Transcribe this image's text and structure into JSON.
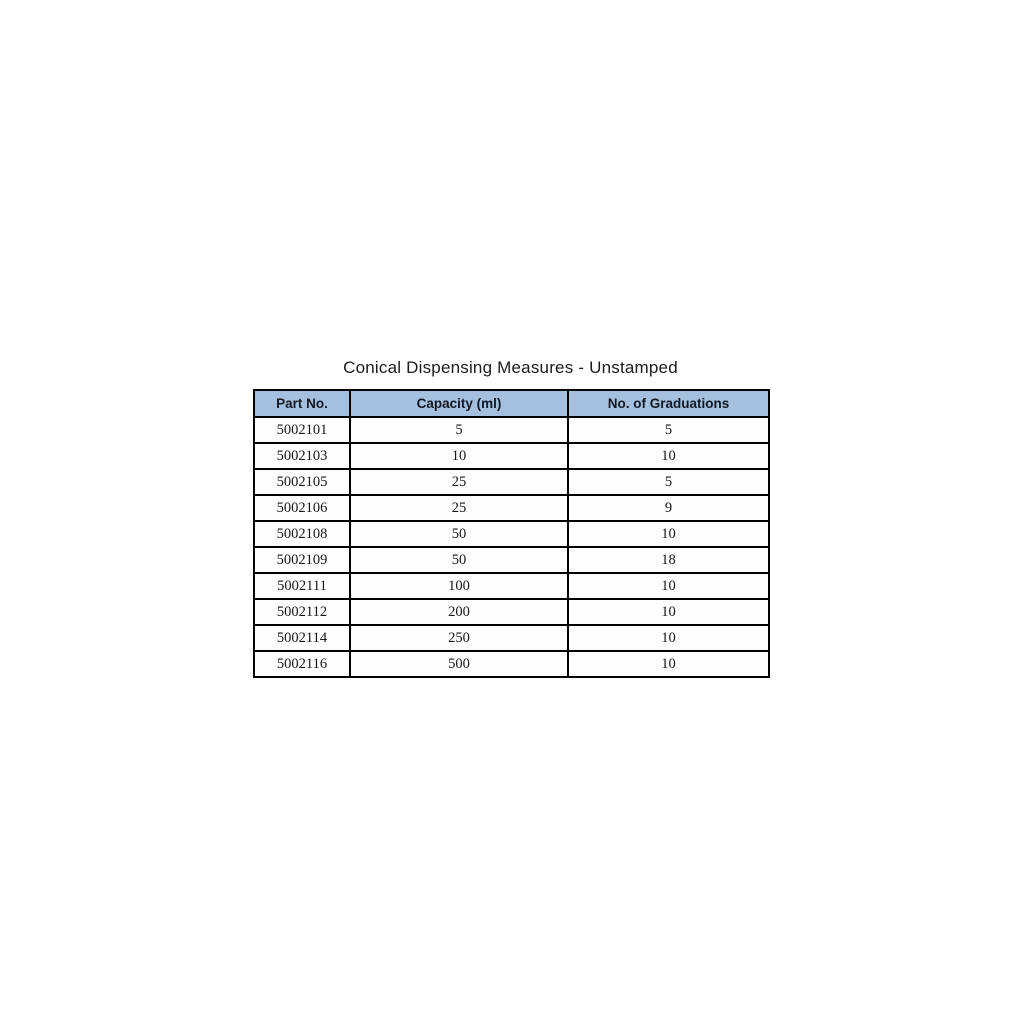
{
  "title": "Conical Dispensing Measures - Unstamped",
  "chart_data": {
    "type": "table",
    "title": "Conical Dispensing Measures - Unstamped",
    "columns": [
      "Part No.",
      "Capacity (ml)",
      "No. of Graduations"
    ],
    "rows": [
      [
        "5002101",
        "5",
        "5"
      ],
      [
        "5002103",
        "10",
        "10"
      ],
      [
        "5002105",
        "25",
        "5"
      ],
      [
        "5002106",
        "25",
        "9"
      ],
      [
        "5002108",
        "50",
        "10"
      ],
      [
        "5002109",
        "50",
        "18"
      ],
      [
        "5002111",
        "100",
        "10"
      ],
      [
        "5002112",
        "200",
        "10"
      ],
      [
        "5002114",
        "250",
        "10"
      ],
      [
        "5002116",
        "500",
        "10"
      ]
    ],
    "layout": {
      "header_position": "top",
      "grid": true
    }
  },
  "colors": {
    "page_background": "#ffffff",
    "header_background": "#a5c0de",
    "border": "#000000",
    "header_text": "#121724",
    "cell_text": "#161616"
  }
}
